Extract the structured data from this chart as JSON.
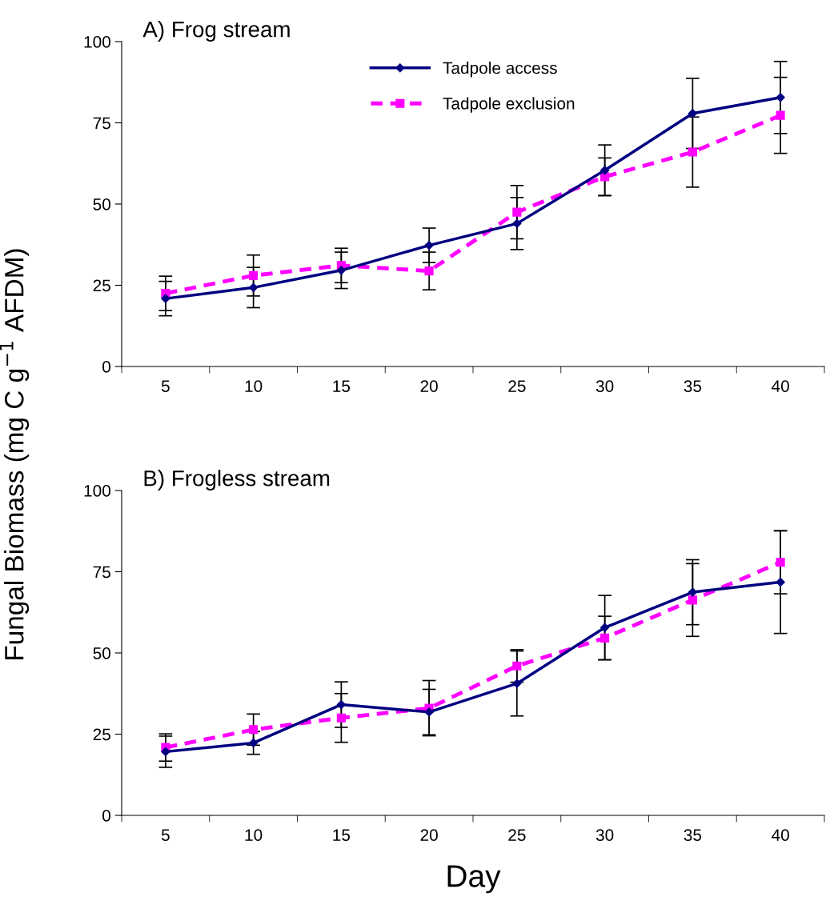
{
  "chart_data": [
    {
      "type": "line",
      "title": "A) Frog stream",
      "ylabel": "Fungal Biomass (mg C g$^{−1}$ AFDM)",
      "categories": [
        "5",
        "10",
        "15",
        "20",
        "25",
        "30",
        "35",
        "40"
      ],
      "ylim": [
        0,
        100
      ],
      "yticks": [
        0,
        25,
        50,
        75,
        100
      ],
      "grid": false,
      "legend": "top",
      "series": [
        {
          "name": "Tadpole access",
          "color": "#000080",
          "marker": "diamond",
          "line_style": "solid",
          "values": [
            20.9,
            24.3,
            29.6,
            37.3,
            44.0,
            60.4,
            77.9,
            82.8
          ],
          "errors": [
            5.3,
            6.2,
            5.6,
            5.3,
            8.0,
            7.8,
            10.8,
            11.1
          ]
        },
        {
          "name": "Tadpole exclusion",
          "color": "#ff00ff",
          "marker": "square",
          "line_style": "dashed",
          "values": [
            22.5,
            28.0,
            31.1,
            29.4,
            47.5,
            58.4,
            66.0,
            77.3
          ],
          "errors": [
            5.3,
            6.3,
            5.3,
            5.8,
            8.2,
            5.8,
            10.8,
            11.7
          ]
        }
      ]
    },
    {
      "type": "line",
      "title": "B) Frogless stream",
      "xlabel": "Day",
      "categories": [
        "5",
        "10",
        "15",
        "20",
        "25",
        "30",
        "35",
        "40"
      ],
      "ylim": [
        0,
        100
      ],
      "yticks": [
        0,
        25,
        50,
        75,
        100
      ],
      "grid": false,
      "legend": false,
      "series": [
        {
          "color": "#000080",
          "marker": "diamond",
          "line_style": "solid",
          "values": [
            19.6,
            22.3,
            34.1,
            31.8,
            40.6,
            57.8,
            68.7,
            71.8
          ],
          "errors": [
            4.8,
            3.5,
            7.0,
            7.0,
            10.0,
            9.9,
            10.0,
            15.8
          ]
        },
        {
          "color": "#ff00ff",
          "marker": "square",
          "line_style": "dashed",
          "values": [
            20.9,
            26.4,
            30.0,
            33.0,
            46.0,
            54.6,
            66.3,
            77.9
          ],
          "errors": [
            4.2,
            4.8,
            7.5,
            8.5,
            5.0,
            6.7,
            11.2,
            9.7
          ]
        }
      ]
    }
  ]
}
